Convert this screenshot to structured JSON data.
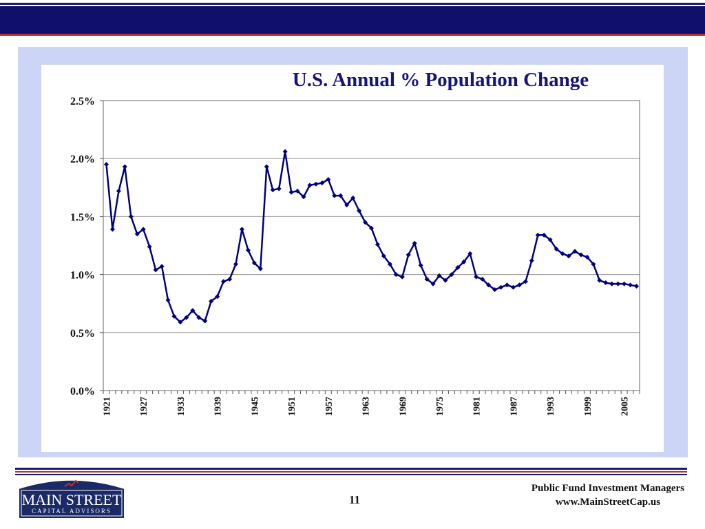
{
  "slide": {
    "page_number": "11",
    "footer_line1": "Public Fund Investment Managers",
    "footer_line2": "www.MainStreetCap.us",
    "logo_line1": "MAIN STREET",
    "logo_line2": "CAPITAL ADVISORS"
  },
  "colors": {
    "header_navy": "#10106a",
    "accent_red": "#c0302a",
    "panel_lavender": "#cdd5f7",
    "series_line": "#000080"
  },
  "chart_data": {
    "type": "line",
    "title": "U.S. Annual % Population Change",
    "xlabel": "",
    "ylabel": "",
    "ylim": [
      0,
      2.5
    ],
    "xlim": [
      1921,
      2007
    ],
    "grid": true,
    "legend": "none",
    "y_ticks": [
      "0.0%",
      "0.5%",
      "1.0%",
      "1.5%",
      "2.0%",
      "2.5%"
    ],
    "x_ticks": [
      "1921",
      "1927",
      "1933",
      "1939",
      "1945",
      "1951",
      "1957",
      "1963",
      "1969",
      "1975",
      "1981",
      "1987",
      "1993",
      "1999",
      "2005"
    ],
    "series": [
      {
        "x": [
          1921,
          1922,
          1923,
          1924,
          1925,
          1926,
          1927,
          1928,
          1929,
          1930,
          1931,
          1932,
          1933,
          1934,
          1935,
          1936,
          1937,
          1938,
          1939,
          1940,
          1941,
          1942,
          1943,
          1944,
          1945,
          1946,
          1947,
          1948,
          1949,
          1950,
          1951,
          1952,
          1953,
          1954,
          1955,
          1956,
          1957,
          1958,
          1959,
          1960,
          1961,
          1962,
          1963,
          1964,
          1965,
          1966,
          1967,
          1968,
          1969,
          1970,
          1971,
          1972,
          1973,
          1974,
          1975,
          1976,
          1977,
          1978,
          1979,
          1980,
          1981,
          1982,
          1983,
          1984,
          1985,
          1986,
          1987,
          1988,
          1989,
          1990,
          1991,
          1992,
          1993,
          1994,
          1995,
          1996,
          1997,
          1998,
          1999,
          2000,
          2001,
          2002,
          2003,
          2004,
          2005,
          2006,
          2007
        ],
        "values": [
          1.95,
          1.39,
          1.72,
          1.93,
          1.5,
          1.35,
          1.39,
          1.24,
          1.04,
          1.07,
          0.78,
          0.64,
          0.59,
          0.63,
          0.69,
          0.63,
          0.6,
          0.77,
          0.81,
          0.94,
          0.96,
          1.09,
          1.39,
          1.21,
          1.1,
          1.05,
          1.93,
          1.73,
          1.74,
          2.06,
          1.71,
          1.72,
          1.67,
          1.77,
          1.78,
          1.79,
          1.82,
          1.68,
          1.68,
          1.6,
          1.66,
          1.55,
          1.45,
          1.4,
          1.26,
          1.16,
          1.09,
          1.0,
          0.98,
          1.17,
          1.27,
          1.08,
          0.96,
          0.92,
          0.99,
          0.95,
          1.0,
          1.06,
          1.11,
          1.18,
          0.98,
          0.96,
          0.91,
          0.87,
          0.89,
          0.91,
          0.89,
          0.91,
          0.94,
          1.12,
          1.34,
          1.34,
          1.3,
          1.22,
          1.18,
          1.16,
          1.2,
          1.17,
          1.15,
          1.09,
          0.95,
          0.93,
          0.92,
          0.92,
          0.92,
          0.91,
          0.9
        ]
      }
    ]
  }
}
